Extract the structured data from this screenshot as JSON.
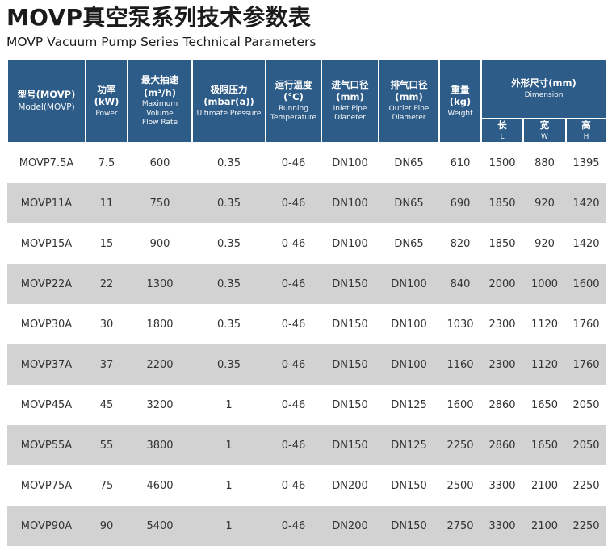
{
  "page": {
    "title": "MOVP真空泵系列技术参数表",
    "subtitle": "MOVP Vacuum Pump Series Technical Parameters"
  },
  "colors": {
    "header_bg": "#2e5c88",
    "row_alt_bg": "#d2d2d2",
    "header_text": "#ffffff",
    "body_text": "#333333"
  },
  "table": {
    "columns": [
      {
        "zh": "型号(MOVP)",
        "en": "Model(MOVP)"
      },
      {
        "zh": "功率(kW)",
        "en": "Power"
      },
      {
        "zh": "最大抽速(m³/h)",
        "en": "Maximum Volume\nFlow Rate"
      },
      {
        "zh": "极限压力(mbar(a))",
        "en": "Ultimate Pressure"
      },
      {
        "zh": "运行温度(°C)",
        "en": "Running\nTemperature"
      },
      {
        "zh": "进气口径(mm)",
        "en": "Inlet Pipe Dianeter"
      },
      {
        "zh": "排气口径(mm)",
        "en": "Outlet Pipe\nDiameter"
      },
      {
        "zh": "重量(kg)",
        "en": "Weight"
      }
    ],
    "dimension_group": {
      "zh": "外形尺寸(mm)",
      "en": "Dimension",
      "subcolumns": [
        {
          "zh": "长",
          "en": "L"
        },
        {
          "zh": "宽",
          "en": "W"
        },
        {
          "zh": "高",
          "en": "H"
        }
      ]
    },
    "rows": [
      [
        "MOVP7.5A",
        "7.5",
        "600",
        "0.35",
        "0-46",
        "DN100",
        "DN65",
        "610",
        "1500",
        "880",
        "1395"
      ],
      [
        "MOVP11A",
        "11",
        "750",
        "0.35",
        "0-46",
        "DN100",
        "DN65",
        "690",
        "1850",
        "920",
        "1420"
      ],
      [
        "MOVP15A",
        "15",
        "900",
        "0.35",
        "0-46",
        "DN100",
        "DN65",
        "820",
        "1850",
        "920",
        "1420"
      ],
      [
        "MOVP22A",
        "22",
        "1300",
        "0.35",
        "0-46",
        "DN150",
        "DN100",
        "840",
        "2000",
        "1000",
        "1600"
      ],
      [
        "MOVP30A",
        "30",
        "1800",
        "0.35",
        "0-46",
        "DN150",
        "DN100",
        "1030",
        "2300",
        "1120",
        "1760"
      ],
      [
        "MOVP37A",
        "37",
        "2200",
        "0.35",
        "0-46",
        "DN150",
        "DN100",
        "1160",
        "2300",
        "1120",
        "1760"
      ],
      [
        "MOVP45A",
        "45",
        "3200",
        "1",
        "0-46",
        "DN150",
        "DN125",
        "1600",
        "2860",
        "1650",
        "2050"
      ],
      [
        "MOVP55A",
        "55",
        "3800",
        "1",
        "0-46",
        "DN150",
        "DN125",
        "2250",
        "2860",
        "1650",
        "2050"
      ],
      [
        "MOVP75A",
        "75",
        "4600",
        "1",
        "0-46",
        "DN200",
        "DN150",
        "2500",
        "3300",
        "2100",
        "2250"
      ],
      [
        "MOVP90A",
        "90",
        "5400",
        "1",
        "0-46",
        "DN200",
        "DN150",
        "2750",
        "3300",
        "2100",
        "2250"
      ]
    ]
  }
}
